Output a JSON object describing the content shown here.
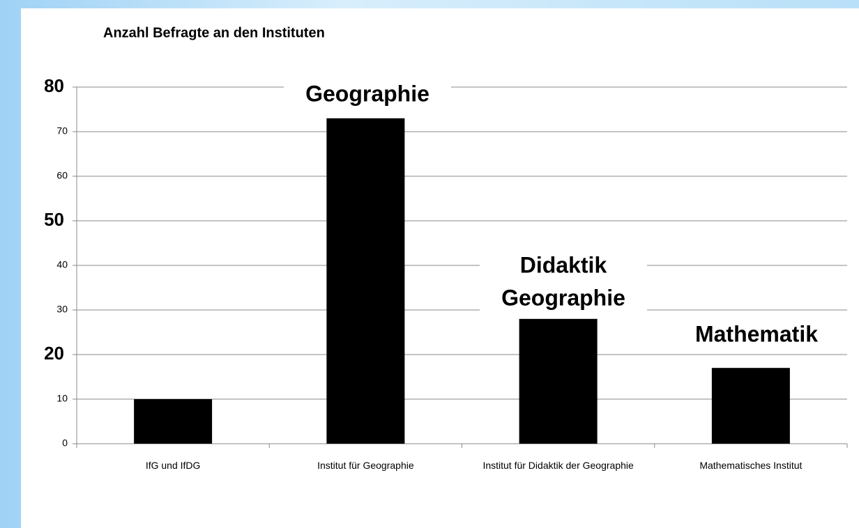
{
  "chart_data": {
    "type": "bar",
    "title": "Anzahl Befragte an den Instituten",
    "categories": [
      "IfG und IfDG",
      "Institut für Geographie",
      "Institut für Didaktik der Geographie",
      "Mathematisches Institut"
    ],
    "values": [
      10,
      73,
      28,
      17
    ],
    "color": "#000000",
    "ylim": [
      0,
      80
    ],
    "yticks": [
      0,
      10,
      20,
      30,
      40,
      50,
      60,
      70,
      80
    ],
    "grid": true,
    "annotations": [
      [
        "Geographie"
      ],
      [
        "Didaktik",
        "Geographie"
      ],
      [
        "Mathematik"
      ]
    ]
  }
}
